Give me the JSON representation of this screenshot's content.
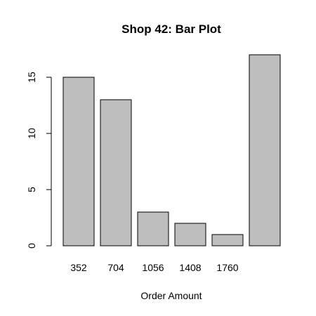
{
  "chart_data": {
    "type": "bar",
    "title": "Shop 42: Bar Plot",
    "xlabel": "Order Amount",
    "ylabel": "",
    "categories": [
      "352",
      "704",
      "1056",
      "1408",
      "1760",
      ""
    ],
    "values": [
      15,
      13,
      3,
      2,
      1,
      17
    ],
    "ylim": [
      0,
      17
    ],
    "y_ticks": [
      0,
      5,
      10,
      15
    ],
    "grid": false,
    "legend": "none",
    "colors": {
      "bar_fill": "#bebebe",
      "bar_stroke": "#000000",
      "axis": "#000000",
      "text": "#000000",
      "background": "#ffffff"
    }
  }
}
